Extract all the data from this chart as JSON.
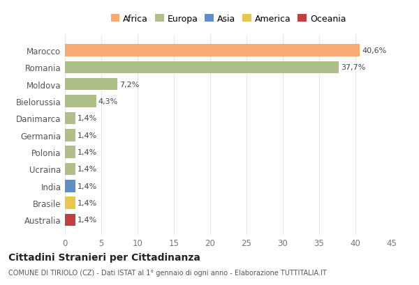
{
  "countries": [
    "Marocco",
    "Romania",
    "Moldova",
    "Bielorussia",
    "Danimarca",
    "Germania",
    "Polonia",
    "Ucraina",
    "India",
    "Brasile",
    "Australia"
  ],
  "values": [
    40.6,
    37.7,
    7.2,
    4.3,
    1.4,
    1.4,
    1.4,
    1.4,
    1.4,
    1.4,
    1.4
  ],
  "labels": [
    "40,6%",
    "37,7%",
    "7,2%",
    "4,3%",
    "1,4%",
    "1,4%",
    "1,4%",
    "1,4%",
    "1,4%",
    "1,4%",
    "1,4%"
  ],
  "colors": [
    "#F5AB72",
    "#AEBF8A",
    "#AEBF8A",
    "#AEBF8A",
    "#AEBF8A",
    "#AEBF8A",
    "#AEBF8A",
    "#AEBF8A",
    "#5F8EC9",
    "#E8C84A",
    "#C04040"
  ],
  "legend_labels": [
    "Africa",
    "Europa",
    "Asia",
    "America",
    "Oceania"
  ],
  "legend_colors": [
    "#F5AB72",
    "#AEBF8A",
    "#5F8EC9",
    "#E8C84A",
    "#C04040"
  ],
  "title": "Cittadini Stranieri per Cittadinanza",
  "subtitle": "COMUNE DI TIRIOLO (CZ) - Dati ISTAT al 1° gennaio di ogni anno - Elaborazione TUTTITALIA.IT",
  "xlim": [
    0,
    45
  ],
  "xticks": [
    0,
    5,
    10,
    15,
    20,
    25,
    30,
    35,
    40,
    45
  ],
  "background_color": "#FFFFFF",
  "grid_color": "#E5E5E5"
}
